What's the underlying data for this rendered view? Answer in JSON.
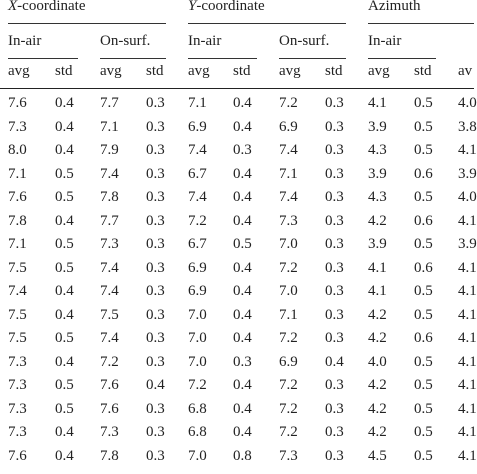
{
  "table": {
    "groups": [
      {
        "title": "X-coordinate",
        "subgroups": [
          {
            "title": "In-air",
            "cols": [
              "avg",
              "std"
            ]
          },
          {
            "title": "On-surf.",
            "cols": [
              "avg",
              "std"
            ]
          }
        ]
      },
      {
        "title": "Y-coordinate",
        "subgroups": [
          {
            "title": "In-air",
            "cols": [
              "avg",
              "std"
            ]
          },
          {
            "title": "On-surf.",
            "cols": [
              "avg",
              "std"
            ]
          }
        ]
      },
      {
        "title": "Azimuth",
        "subgroups": [
          {
            "title": "In-air",
            "cols": [
              "avg",
              "std"
            ]
          },
          {
            "title": "",
            "cols": [
              "av"
            ]
          }
        ]
      }
    ],
    "rows": [
      [
        "7.6",
        "0.4",
        "7.7",
        "0.3",
        "7.1",
        "0.4",
        "7.2",
        "0.3",
        "4.1",
        "0.5",
        "4.0"
      ],
      [
        "7.3",
        "0.4",
        "7.1",
        "0.3",
        "6.9",
        "0.4",
        "6.9",
        "0.3",
        "3.9",
        "0.5",
        "3.8"
      ],
      [
        "8.0",
        "0.4",
        "7.9",
        "0.3",
        "7.4",
        "0.3",
        "7.4",
        "0.3",
        "4.3",
        "0.5",
        "4.1"
      ],
      [
        "7.1",
        "0.5",
        "7.4",
        "0.3",
        "6.7",
        "0.4",
        "7.1",
        "0.3",
        "3.9",
        "0.6",
        "3.9"
      ],
      [
        "7.6",
        "0.5",
        "7.8",
        "0.3",
        "7.4",
        "0.4",
        "7.4",
        "0.3",
        "4.3",
        "0.5",
        "4.0"
      ],
      [
        "7.8",
        "0.4",
        "7.7",
        "0.3",
        "7.2",
        "0.4",
        "7.3",
        "0.3",
        "4.2",
        "0.6",
        "4.1"
      ],
      [
        "7.1",
        "0.5",
        "7.3",
        "0.3",
        "6.7",
        "0.5",
        "7.0",
        "0.3",
        "3.9",
        "0.5",
        "3.9"
      ],
      [
        "7.5",
        "0.5",
        "7.4",
        "0.3",
        "6.9",
        "0.4",
        "7.2",
        "0.3",
        "4.1",
        "0.6",
        "4.1"
      ],
      [
        "7.4",
        "0.4",
        "7.4",
        "0.3",
        "6.9",
        "0.4",
        "7.0",
        "0.3",
        "4.1",
        "0.5",
        "4.1"
      ],
      [
        "7.5",
        "0.4",
        "7.5",
        "0.3",
        "7.0",
        "0.4",
        "7.1",
        "0.3",
        "4.2",
        "0.5",
        "4.1"
      ],
      [
        "7.5",
        "0.5",
        "7.4",
        "0.3",
        "7.0",
        "0.4",
        "7.2",
        "0.3",
        "4.2",
        "0.6",
        "4.1"
      ],
      [
        "7.3",
        "0.4",
        "7.2",
        "0.3",
        "7.0",
        "0.3",
        "6.9",
        "0.4",
        "4.0",
        "0.5",
        "4.1"
      ],
      [
        "7.3",
        "0.5",
        "7.6",
        "0.4",
        "7.2",
        "0.4",
        "7.2",
        "0.3",
        "4.2",
        "0.5",
        "4.1"
      ],
      [
        "7.3",
        "0.5",
        "7.6",
        "0.3",
        "6.8",
        "0.4",
        "7.2",
        "0.3",
        "4.2",
        "0.5",
        "4.1"
      ],
      [
        "7.3",
        "0.4",
        "7.3",
        "0.3",
        "6.8",
        "0.4",
        "7.2",
        "0.3",
        "4.2",
        "0.5",
        "4.1"
      ],
      [
        "7.6",
        "0.4",
        "7.8",
        "0.3",
        "7.0",
        "0.8",
        "7.3",
        "0.3",
        "4.5",
        "0.5",
        "4.1"
      ]
    ]
  }
}
